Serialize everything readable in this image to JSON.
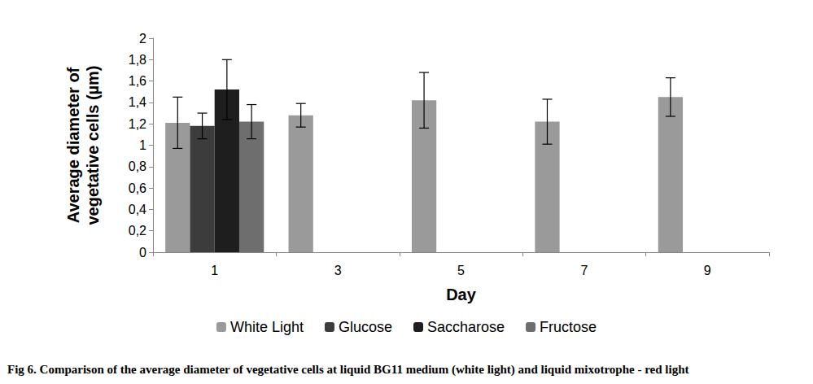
{
  "chart_data": {
    "type": "bar",
    "title": "Fig 6. Comparison of the average diameter of vegetative cells at liquid BG11 medium (white light) and liquid mixotrophe - red light",
    "x_label": "Day",
    "y_label": "Average diameter of\nvegetative cells (µm)",
    "categories": [
      "1",
      "3",
      "5",
      "7",
      "9"
    ],
    "series": [
      {
        "name": "White Light",
        "color": "#9a9a9a",
        "values": [
          1.21,
          1.28,
          1.42,
          1.22,
          1.45
        ],
        "errors": [
          0.24,
          0.11,
          0.26,
          0.21,
          0.18
        ]
      },
      {
        "name": "Glucose",
        "color": "#3c3c3c",
        "values": [
          1.18,
          null,
          null,
          null,
          null
        ],
        "errors": [
          0.12,
          null,
          null,
          null,
          null
        ]
      },
      {
        "name": "Saccharose",
        "color": "#1e1e1e",
        "values": [
          1.52,
          null,
          null,
          null,
          null
        ],
        "errors": [
          0.28,
          null,
          null,
          null,
          null
        ]
      },
      {
        "name": "Fructose",
        "color": "#6e6e6e",
        "values": [
          1.22,
          null,
          null,
          null,
          null
        ],
        "errors": [
          0.16,
          null,
          null,
          null,
          null
        ]
      }
    ],
    "ylim": [
      0,
      2
    ],
    "yticks": [
      0,
      {
        "value": 0.2,
        "label": "0,2"
      },
      {
        "value": 0.4,
        "label": "0,4"
      },
      {
        "value": 0.6,
        "label": "0,6"
      },
      {
        "value": 0.8,
        "label": "0,8"
      },
      1,
      {
        "value": 1.2,
        "label": "1,2"
      },
      {
        "value": 1.4,
        "label": "1,4"
      },
      {
        "value": 1.6,
        "label": "1,6"
      },
      {
        "value": 1.8,
        "label": "1,8"
      },
      2
    ],
    "grid": false,
    "legend": "bottom"
  }
}
